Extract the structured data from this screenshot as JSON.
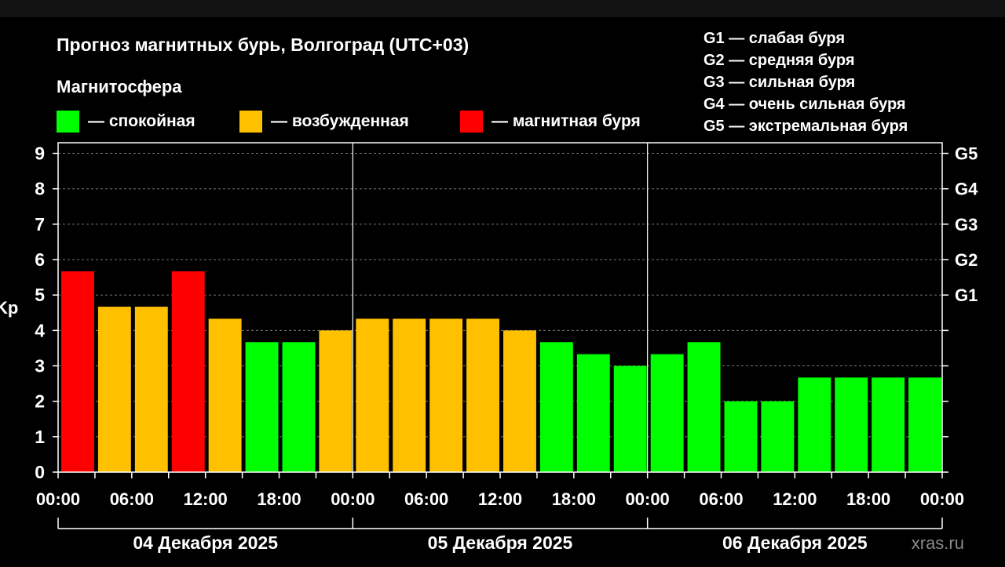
{
  "chart_data": {
    "type": "bar",
    "title": "Прогноз магнитных бурь, Волгоград (UTC+03)",
    "subtitle": "Магнитосфера",
    "ylabel": "Kp",
    "ylim": [
      0,
      9.3
    ],
    "y_ticks": [
      "0",
      "1",
      "2",
      "3",
      "4",
      "5",
      "6",
      "7",
      "8",
      "9"
    ],
    "right_ticks": [
      {
        "value": 5,
        "label": "G1"
      },
      {
        "value": 6,
        "label": "G2"
      },
      {
        "value": 7,
        "label": "G3"
      },
      {
        "value": 8,
        "label": "G4"
      },
      {
        "value": 9,
        "label": "G5"
      }
    ],
    "x_tick_labels": [
      "00:00",
      "06:00",
      "12:00",
      "18:00",
      "00:00",
      "06:00",
      "12:00",
      "18:00",
      "00:00",
      "06:00",
      "12:00",
      "18:00",
      "00:00"
    ],
    "days": [
      "04 Декабря 2025",
      "05 Декабря 2025",
      "06 Декабря 2025"
    ],
    "bars_per_day": 8,
    "values": [
      5.67,
      4.67,
      4.67,
      5.67,
      4.33,
      3.67,
      3.67,
      4.0,
      4.33,
      4.33,
      4.33,
      4.33,
      4.0,
      3.67,
      3.33,
      3.0,
      3.33,
      3.67,
      2.0,
      2.0,
      2.67,
      2.67,
      2.67,
      2.67
    ],
    "status": [
      "storm",
      "excited",
      "excited",
      "storm",
      "excited",
      "calm",
      "calm",
      "excited",
      "excited",
      "excited",
      "excited",
      "excited",
      "excited",
      "calm",
      "calm",
      "calm",
      "calm",
      "calm",
      "calm",
      "calm",
      "calm",
      "calm",
      "calm",
      "calm"
    ],
    "grid": true
  },
  "legend": [
    {
      "key": "calm",
      "label": "— спокойная",
      "color": "#00ff00"
    },
    {
      "key": "excited",
      "label": "— возбужденная",
      "color": "#ffc000"
    },
    {
      "key": "storm",
      "label": "— магнитная буря",
      "color": "#ff0000"
    }
  ],
  "g_scale": [
    "G1 — слабая буря",
    "G2 — средняя буря",
    "G3 — сильная буря",
    "G4 — очень сильная буря",
    "G5 — экстремальная буря"
  ],
  "watermark": "xras.ru"
}
